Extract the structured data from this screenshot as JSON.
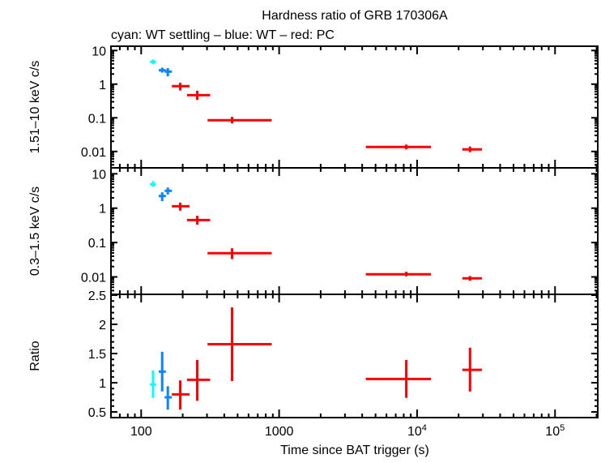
{
  "chart_data": {
    "type": "scatter",
    "title": "Hardness ratio of GRB 170306A",
    "subtitle": "cyan: WT settling – blue: WT – red: PC",
    "xlabel": "Time since BAT trigger (s)",
    "xscale": "log",
    "xlim": [
      60.4,
      204000
    ],
    "x_ticks": [
      {
        "value": 100,
        "label": "100"
      },
      {
        "value": 1000,
        "label": "1000"
      },
      {
        "value": 10000,
        "label": "10",
        "sup": "4"
      },
      {
        "value": 100000,
        "label": "10",
        "sup": "5"
      }
    ],
    "colors": {
      "wt_settling": "#00ffff",
      "wt": "#0a84ff",
      "pc": "#ff0000"
    },
    "grid": false,
    "panels": [
      {
        "ylabel": "1.51–10 keV c/s",
        "yscale": "log",
        "ylim": [
          0.00326,
          13.4
        ],
        "y_ticks": [
          {
            "value": 10,
            "label": "10"
          },
          {
            "value": 1,
            "label": "1"
          },
          {
            "value": 0.1,
            "label": "0.1"
          },
          {
            "value": 0.01,
            "label": "0.01"
          }
        ],
        "points": [
          {
            "mode": "wt_settling",
            "x": 122,
            "xlo": 116,
            "xhi": 128,
            "y": 4.6,
            "ylo": 3.9,
            "yhi": 5.4
          },
          {
            "mode": "wt",
            "x": 142,
            "xlo": 134,
            "xhi": 151,
            "y": 2.58,
            "ylo": 2.2,
            "yhi": 3.1
          },
          {
            "mode": "wt",
            "x": 156,
            "xlo": 148,
            "xhi": 167,
            "y": 2.36,
            "ylo": 1.7,
            "yhi": 3.0
          },
          {
            "mode": "pc",
            "x": 192,
            "xlo": 167,
            "xhi": 224,
            "y": 0.87,
            "ylo": 0.65,
            "yhi": 1.1
          },
          {
            "mode": "pc",
            "x": 255,
            "xlo": 215,
            "xhi": 316,
            "y": 0.47,
            "ylo": 0.34,
            "yhi": 0.64
          },
          {
            "mode": "pc",
            "x": 456,
            "xlo": 303,
            "xhi": 883,
            "y": 0.085,
            "ylo": 0.068,
            "yhi": 0.107
          },
          {
            "mode": "pc",
            "x": 8350,
            "xlo": 4250,
            "xhi": 12600,
            "y": 0.0136,
            "ylo": 0.0115,
            "yhi": 0.016
          },
          {
            "mode": "pc",
            "x": 24200,
            "xlo": 21300,
            "xhi": 29500,
            "y": 0.0115,
            "ylo": 0.0095,
            "yhi": 0.014
          }
        ]
      },
      {
        "ylabel": "0.3–1.5 keV c/s",
        "yscale": "log",
        "ylim": [
          0.00311,
          14.9
        ],
        "y_ticks": [
          {
            "value": 10,
            "label": "10"
          },
          {
            "value": 1,
            "label": "1"
          },
          {
            "value": 0.1,
            "label": "0.1"
          },
          {
            "value": 0.01,
            "label": "0.01"
          }
        ],
        "points": [
          {
            "mode": "wt_settling",
            "x": 122,
            "xlo": 116,
            "xhi": 128,
            "y": 4.93,
            "ylo": 4.2,
            "yhi": 6.1
          },
          {
            "mode": "wt",
            "x": 142,
            "xlo": 134,
            "xhi": 151,
            "y": 2.26,
            "ylo": 1.6,
            "yhi": 2.9
          },
          {
            "mode": "wt",
            "x": 156,
            "xlo": 148,
            "xhi": 167,
            "y": 3.2,
            "ylo": 2.5,
            "yhi": 4.0
          },
          {
            "mode": "pc",
            "x": 192,
            "xlo": 167,
            "xhi": 224,
            "y": 1.14,
            "ylo": 0.85,
            "yhi": 1.45
          },
          {
            "mode": "pc",
            "x": 255,
            "xlo": 215,
            "xhi": 316,
            "y": 0.45,
            "ylo": 0.33,
            "yhi": 0.6
          },
          {
            "mode": "pc",
            "x": 456,
            "xlo": 303,
            "xhi": 883,
            "y": 0.049,
            "ylo": 0.033,
            "yhi": 0.068
          },
          {
            "mode": "pc",
            "x": 8350,
            "xlo": 4250,
            "xhi": 12600,
            "y": 0.0119,
            "ylo": 0.0104,
            "yhi": 0.0141
          },
          {
            "mode": "pc",
            "x": 24200,
            "xlo": 21300,
            "xhi": 29500,
            "y": 0.0091,
            "ylo": 0.0077,
            "yhi": 0.0106
          }
        ]
      },
      {
        "ylabel": "Ratio",
        "yscale": "linear",
        "ylim": [
          0.403,
          2.514
        ],
        "y_ticks": [
          {
            "value": 0.5,
            "label": "0.5"
          },
          {
            "value": 1,
            "label": "1"
          },
          {
            "value": 1.5,
            "label": "1.5"
          },
          {
            "value": 2,
            "label": "2"
          },
          {
            "value": 2.5,
            "label": "2.5"
          }
        ],
        "points": [
          {
            "mode": "wt_settling",
            "x": 122,
            "xlo": 116,
            "xhi": 128,
            "y": 0.97,
            "ylo": 0.74,
            "yhi": 1.21
          },
          {
            "mode": "wt",
            "x": 142,
            "xlo": 134,
            "xhi": 151,
            "y": 1.19,
            "ylo": 0.85,
            "yhi": 1.53
          },
          {
            "mode": "wt",
            "x": 156,
            "xlo": 148,
            "xhi": 167,
            "y": 0.75,
            "ylo": 0.54,
            "yhi": 0.94
          },
          {
            "mode": "pc",
            "x": 192,
            "xlo": 167,
            "xhi": 224,
            "y": 0.8,
            "ylo": 0.54,
            "yhi": 1.04
          },
          {
            "mode": "pc",
            "x": 255,
            "xlo": 215,
            "xhi": 316,
            "y": 1.05,
            "ylo": 0.69,
            "yhi": 1.39
          },
          {
            "mode": "pc",
            "x": 456,
            "xlo": 303,
            "xhi": 883,
            "y": 1.66,
            "ylo": 1.03,
            "yhi": 2.29
          },
          {
            "mode": "pc",
            "x": 8350,
            "xlo": 4250,
            "xhi": 12600,
            "y": 1.065,
            "ylo": 0.74,
            "yhi": 1.39
          },
          {
            "mode": "pc",
            "x": 24200,
            "xlo": 21300,
            "xhi": 29500,
            "y": 1.22,
            "ylo": 0.85,
            "yhi": 1.6
          }
        ]
      }
    ]
  }
}
